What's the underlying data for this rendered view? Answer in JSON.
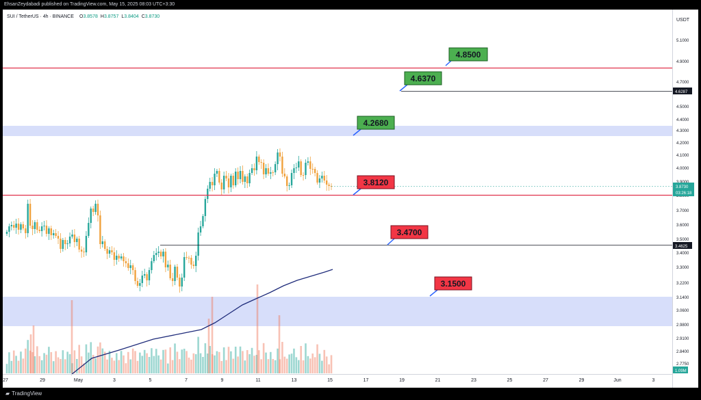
{
  "header": {
    "published_by": "EhsanZeydabadi published on TradingView.com, May 15, 2025 08:03 UTC+3:30"
  },
  "symbol_bar": {
    "symbol": "SUI / TetherUS · 4h · BINANCE",
    "open_label": "O",
    "open": "3.8578",
    "high_label": "H",
    "high": "3.8757",
    "low_label": "L",
    "low": "3.8404",
    "close_label": "C",
    "close": "3.8730",
    "up_color": "#089981",
    "down_color": "#f23645"
  },
  "price_axis": {
    "currency": "USDT",
    "ticks": [
      "5.1000",
      "4.9000",
      "4.7000",
      "4.6000",
      "4.5000",
      "4.4000",
      "4.3000",
      "4.2000",
      "4.1000",
      "4.0000",
      "3.9000",
      "3.8000",
      "3.7000",
      "3.6000",
      "3.5000",
      "3.4000",
      "3.3000",
      "3.2200",
      "3.1400",
      "3.0600",
      "2.9800",
      "2.9100",
      "2.8400",
      "2.7750"
    ],
    "current_price": "3.8730",
    "countdown": "03:26:18",
    "level_tag_1": "4.6287",
    "level_tag_2": "3.4625",
    "volume_tag": "1.09M"
  },
  "time_axis": {
    "labels": [
      "27",
      "29",
      "May",
      "3",
      "5",
      "7",
      "9",
      "11",
      "13",
      "15",
      "17",
      "19",
      "21",
      "23",
      "25",
      "27",
      "29",
      "Jun",
      "3"
    ]
  },
  "annotations": [
    {
      "text": "4.8500",
      "style": "support",
      "color": "#4caf50"
    },
    {
      "text": "4.6370",
      "style": "support",
      "color": "#4caf50"
    },
    {
      "text": "4.2680",
      "style": "support",
      "color": "#4caf50"
    },
    {
      "text": "3.8120",
      "style": "resistance",
      "color": "#f23645"
    },
    {
      "text": "3.4700",
      "style": "resistance",
      "color": "#f23645"
    },
    {
      "text": "3.1500",
      "style": "resistance",
      "color": "#f23645"
    }
  ],
  "colors": {
    "zone": "#d7defa",
    "red_line": "#e0314b",
    "black_line": "#131722",
    "ma_line": "#1e2b7a",
    "candle_up": "#26a69a",
    "candle_down": "#f0a13c"
  },
  "footer": {
    "brand": "TradingView"
  }
}
